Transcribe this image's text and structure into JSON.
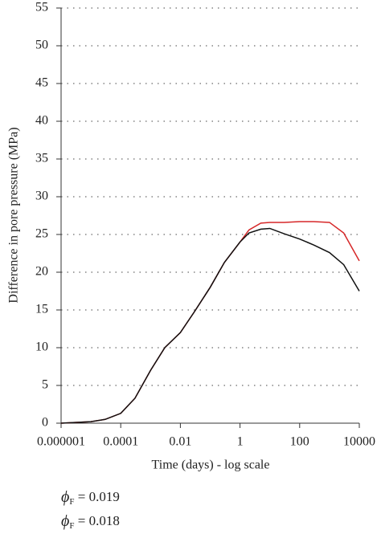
{
  "chart_data": {
    "type": "line",
    "xlabel": "Time (days) - log scale",
    "ylabel": "Difference in pore pressure (MPa)",
    "x": [
      1e-06,
      1e-05,
      3e-05,
      0.0001,
      0.0003,
      0.001,
      0.003,
      0.01,
      0.03,
      0.1,
      0.3,
      1,
      2,
      5,
      10,
      30,
      100,
      300,
      1000,
      3000,
      10000
    ],
    "series": [
      {
        "name": "ϕF = 0.019",
        "color": "#d62728",
        "values": [
          0,
          0.2,
          0.5,
          1.3,
          3.3,
          7,
          10,
          12,
          14.8,
          18,
          21.3,
          24,
          25.6,
          26.5,
          26.6,
          26.6,
          26.7,
          26.7,
          26.6,
          25.2,
          21.5
        ]
      },
      {
        "name": "ϕF = 0.018",
        "color": "#111111",
        "values": [
          0,
          0.2,
          0.5,
          1.3,
          3.3,
          7,
          10,
          12,
          14.8,
          18,
          21.3,
          24,
          25.2,
          25.7,
          25.8,
          25.1,
          24.4,
          23.6,
          22.6,
          21.0,
          17.5
        ]
      }
    ],
    "xscale": "log",
    "xlim": [
      1e-06,
      10000
    ],
    "xticks": [
      1e-06,
      0.0001,
      0.01,
      1,
      100,
      10000
    ],
    "ylim": [
      0,
      55
    ],
    "yticks": [
      0,
      5,
      10,
      15,
      20,
      25,
      30,
      35,
      40,
      45,
      50,
      55
    ],
    "grid": true
  }
}
